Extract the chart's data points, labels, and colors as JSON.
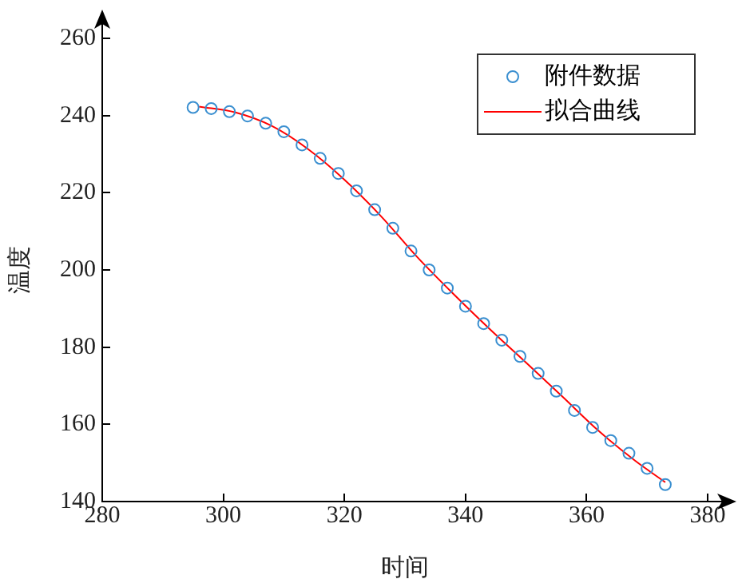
{
  "chart_data": {
    "type": "scatter",
    "xlabel": "时间",
    "ylabel": "温度",
    "xlim": [
      280,
      380
    ],
    "xticks": [
      280,
      300,
      320,
      340,
      360,
      380
    ],
    "ylim": [
      140,
      260
    ],
    "yticks": [
      140,
      160,
      180,
      200,
      220,
      240,
      260
    ],
    "grid": false,
    "legend": "top right",
    "series": [
      {
        "name": "附件数据",
        "color": "#3a8fd0",
        "marker": "circle",
        "x": [
          295,
          298,
          301,
          304,
          307,
          310,
          313,
          316,
          319,
          322,
          325,
          328,
          331,
          334,
          337,
          340,
          343,
          346,
          349,
          352,
          355,
          358,
          361,
          364,
          367,
          370,
          373
        ],
        "values": [
          242.1,
          241.8,
          241.0,
          239.9,
          238.0,
          235.8,
          232.4,
          228.9,
          225.0,
          220.5,
          215.6,
          210.8,
          204.9,
          200.0,
          195.3,
          190.6,
          186.1,
          181.8,
          177.6,
          173.2,
          168.6,
          163.6,
          159.2,
          155.8,
          152.5,
          148.6,
          144.4
        ]
      },
      {
        "name": "拟合曲线",
        "type": "line",
        "color": "#ff0000",
        "marker": "none",
        "line_style": "solid",
        "x": [
          296,
          302,
          308,
          314,
          320,
          326,
          332,
          338,
          344,
          350,
          356,
          362,
          368,
          373
        ],
        "values": [
          242.3,
          240.8,
          237.3,
          231.3,
          223.4,
          214.0,
          203.4,
          193.8,
          184.7,
          176.0,
          167.2,
          158.3,
          150.6,
          145.0
        ]
      }
    ]
  }
}
